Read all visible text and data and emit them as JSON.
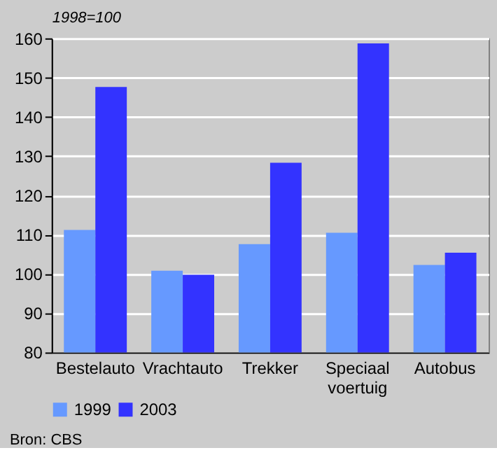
{
  "chart_data": {
    "type": "bar",
    "ylabel": "1998=100",
    "categories": [
      "Bestelauto",
      "Vrachtauto",
      "Trekker",
      "Speciaal voertuig",
      "Autobus"
    ],
    "series": [
      {
        "name": "1999",
        "color": "#6699ff",
        "values": [
          111.2,
          100.8,
          107.6,
          110.5,
          102.3
        ]
      },
      {
        "name": "2003",
        "color": "#3333ff",
        "values": [
          147.6,
          99.8,
          128.3,
          158.7,
          105.4
        ]
      }
    ],
    "ylim": [
      80,
      160
    ],
    "yticks": [
      80,
      90,
      100,
      110,
      120,
      130,
      140,
      150,
      160
    ],
    "grid": "y",
    "legend": "bottom",
    "annotations": [
      "Bron: CBS"
    ]
  }
}
